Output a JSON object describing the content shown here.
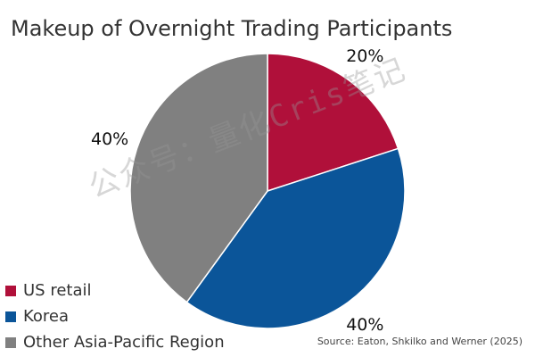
{
  "chart_data": {
    "type": "pie",
    "title": "Makeup of Overnight Trading Participants",
    "slices": [
      {
        "label": "US retail",
        "value": 20,
        "display": "20%",
        "color": "#B0103A"
      },
      {
        "label": "Korea",
        "value": 40,
        "display": "40%",
        "color": "#0B5599"
      },
      {
        "label": "Other Asia-Pacific Region",
        "value": 40,
        "display": "40%",
        "color": "#808080"
      }
    ],
    "start_angle_deg": 0,
    "direction": "clockwise",
    "legend_position": "bottom-left",
    "source": "Source: Eaton, Shkilko and Werner (2025)"
  },
  "watermark": "公众号：量化Cris笔记"
}
